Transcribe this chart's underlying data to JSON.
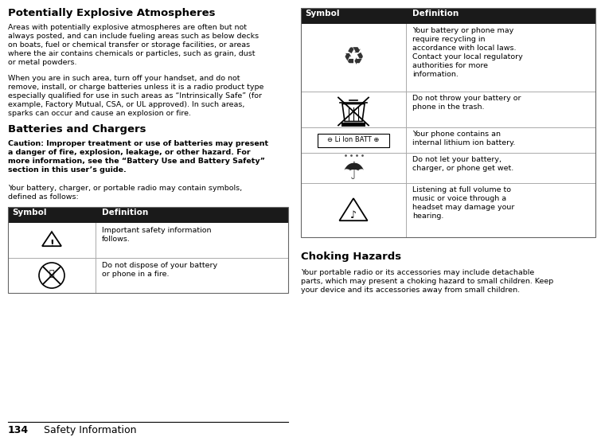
{
  "bg_color": "#ffffff",
  "title1": "Potentially Explosive Atmospheres",
  "para1": "Areas with potentially explosive atmospheres are often but not\nalways posted, and can include fueling areas such as below decks\non boats, fuel or chemical transfer or storage facilities, or areas\nwhere the air contains chemicals or particles, such as grain, dust\nor metal powders.",
  "para2": "When you are in such area, turn off your handset, and do not\nremove, install, or charge batteries unless it is a radio product type\nespecially qualified for use in such areas as “Intrinsically Safe” (for\nexample, Factory Mutual, CSA, or UL approved). In such areas,\nsparks can occur and cause an explosion or fire.",
  "title2": "Batteries and Chargers",
  "para3_bold": "Caution: Improper treatment or use of batteries may present\na danger of fire, explosion, leakage, or other hazard. For\nmore information, see the “Battery Use and Battery Safety”\nsection in this user’s guide.",
  "para4": "Your battery, charger, or portable radio may contain symbols,\ndefined as follows:",
  "table1_header": [
    "Symbol",
    "Definition"
  ],
  "row1_def": "Important safety information\nfollows.",
  "row2_def": "Do not dispose of your battery\nor phone in a fire.",
  "table2_header": [
    "Symbol",
    "Definition"
  ],
  "row_r1": "Your battery or phone may\nrequire recycling in\naccordance with local laws.\nContact your local regulatory\nauthorities for more\ninformation.",
  "row_r2": "Do not throw your battery or\nphone in the trash.",
  "row_r3": "Your phone contains an\ninternal lithium ion battery.",
  "row_r4": "Do not let your battery,\ncharger, or phone get wet.",
  "row_r5": "Listening at full volume to\nmusic or voice through a\nheadset may damage your\nhearing.",
  "li_ion_label": "⊖ Li Ion BATT ⊕",
  "title3": "Choking Hazards",
  "para5": "Your portable radio or its accessories may include detachable\nparts, which may present a choking hazard to small children. Keep\nyour device and its accessories away from small children.",
  "footer_num": "134",
  "footer_text": "Safety Information",
  "header_color": "#1a1a1a",
  "border_color": "#666666",
  "divider_color": "#aaaaaa"
}
